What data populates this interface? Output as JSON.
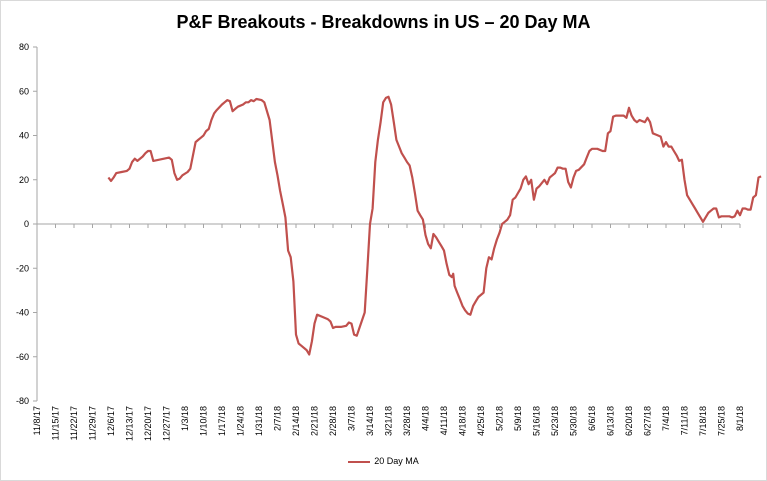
{
  "chart_data": {
    "type": "line",
    "title": "P&F Breakouts - Breakdowns in US – 20 Day MA",
    "xlabel": "",
    "ylabel": "",
    "ylim": [
      -80,
      80
    ],
    "yticks": [
      80,
      60,
      40,
      20,
      0,
      -20,
      -40,
      -60,
      -80
    ],
    "x_tick_labels": [
      "11/8/17",
      "11/15/17",
      "11/22/17",
      "11/29/17",
      "12/6/17",
      "12/13/17",
      "12/20/17",
      "12/27/17",
      "1/3/18",
      "1/10/18",
      "1/17/18",
      "1/24/18",
      "1/31/18",
      "2/7/18",
      "2/14/18",
      "2/21/18",
      "2/28/18",
      "3/7/18",
      "3/14/18",
      "3/21/18",
      "3/28/18",
      "4/4/18",
      "4/11/18",
      "4/18/18",
      "4/25/18",
      "5/2/18",
      "5/9/18",
      "5/16/18",
      "5/23/18",
      "5/30/18",
      "6/6/18",
      "6/13/18",
      "6/20/18",
      "6/27/18",
      "7/4/18",
      "7/11/18",
      "7/18/18",
      "7/25/18",
      "8/1/18"
    ],
    "x_range_days": [
      0,
      266
    ],
    "x_unit": "days since 11/8/17",
    "legend_position": "bottom",
    "grid": false,
    "series": [
      {
        "name": "20 Day MA",
        "color": "#c0504d",
        "points": [
          [
            27,
            21
          ],
          [
            28,
            19.5
          ],
          [
            29,
            21
          ],
          [
            30,
            23
          ],
          [
            32,
            23.5
          ],
          [
            34,
            24
          ],
          [
            35,
            25
          ],
          [
            36,
            28
          ],
          [
            37,
            29.5
          ],
          [
            38,
            28.5
          ],
          [
            40,
            30.5
          ],
          [
            41,
            32
          ],
          [
            42,
            33
          ],
          [
            43,
            33
          ],
          [
            44,
            28.5
          ],
          [
            46,
            29
          ],
          [
            48,
            29.5
          ],
          [
            50,
            30
          ],
          [
            51,
            29
          ],
          [
            52,
            23
          ],
          [
            53,
            20
          ],
          [
            54,
            20.5
          ],
          [
            55,
            22
          ],
          [
            57,
            23.5
          ],
          [
            58,
            25
          ],
          [
            60,
            37
          ],
          [
            61,
            38
          ],
          [
            62,
            39
          ],
          [
            63,
            40
          ],
          [
            64,
            42
          ],
          [
            65,
            43
          ],
          [
            66,
            47
          ],
          [
            67,
            50
          ],
          [
            68,
            51.5
          ],
          [
            70,
            54
          ],
          [
            71,
            55
          ],
          [
            72,
            56
          ],
          [
            73,
            55.5
          ],
          [
            74,
            51
          ],
          [
            75,
            52
          ],
          [
            76,
            53
          ],
          [
            78,
            54
          ],
          [
            79,
            55
          ],
          [
            80,
            55
          ],
          [
            81,
            56
          ],
          [
            82,
            55.5
          ],
          [
            83,
            56.5
          ],
          [
            85,
            56
          ],
          [
            86,
            55
          ],
          [
            88,
            47
          ],
          [
            90,
            28
          ],
          [
            91,
            22
          ],
          [
            92,
            15
          ],
          [
            93,
            9
          ],
          [
            94,
            3
          ],
          [
            95,
            -12
          ],
          [
            96,
            -15
          ],
          [
            97,
            -26
          ],
          [
            98,
            -50
          ],
          [
            99,
            -54
          ],
          [
            100,
            -55
          ],
          [
            102,
            -57
          ],
          [
            103,
            -59
          ],
          [
            104,
            -53
          ],
          [
            105,
            -45
          ],
          [
            106,
            -41
          ],
          [
            108,
            -42
          ],
          [
            110,
            -43
          ],
          [
            111,
            -44
          ],
          [
            112,
            -47
          ],
          [
            113,
            -46.5
          ],
          [
            115,
            -46.5
          ],
          [
            117,
            -46
          ],
          [
            118,
            -44.5
          ],
          [
            119,
            -45
          ],
          [
            120,
            -50
          ],
          [
            121,
            -50.5
          ],
          [
            122,
            -47
          ],
          [
            124,
            -40
          ],
          [
            125,
            -20
          ],
          [
            126,
            0
          ],
          [
            127,
            7
          ],
          [
            128,
            28
          ],
          [
            129,
            38
          ],
          [
            130,
            46
          ],
          [
            131,
            55
          ],
          [
            132,
            57
          ],
          [
            133,
            57.5
          ],
          [
            134,
            54
          ],
          [
            135,
            46
          ],
          [
            136,
            38
          ],
          [
            137,
            35
          ],
          [
            138,
            32
          ],
          [
            139,
            30
          ],
          [
            140,
            28
          ],
          [
            141,
            26.5
          ],
          [
            142,
            21
          ],
          [
            143,
            14
          ],
          [
            144,
            6
          ],
          [
            145,
            4
          ],
          [
            146,
            2
          ],
          [
            147,
            -5
          ],
          [
            148,
            -9
          ],
          [
            149,
            -11
          ],
          [
            150,
            -4.5
          ],
          [
            151,
            -6
          ],
          [
            152,
            -8
          ],
          [
            153,
            -10
          ],
          [
            154,
            -12
          ],
          [
            155,
            -18
          ],
          [
            156,
            -23
          ],
          [
            157,
            -24
          ],
          [
            157.5,
            -22.5
          ],
          [
            158,
            -28
          ],
          [
            159,
            -31
          ],
          [
            160,
            -34
          ],
          [
            161,
            -37
          ],
          [
            162,
            -39
          ],
          [
            163,
            -40.5
          ],
          [
            164,
            -41
          ],
          [
            165,
            -37
          ],
          [
            166,
            -35
          ],
          [
            167,
            -33
          ],
          [
            169,
            -31
          ],
          [
            170,
            -20
          ],
          [
            171,
            -15
          ],
          [
            172,
            -16
          ],
          [
            173,
            -11
          ],
          [
            174,
            -7
          ],
          [
            175,
            -4
          ],
          [
            176,
            0
          ],
          [
            177,
            1
          ],
          [
            178,
            2
          ],
          [
            179,
            4
          ],
          [
            180,
            11
          ],
          [
            181,
            12
          ],
          [
            182,
            14
          ],
          [
            183,
            16
          ],
          [
            184,
            20
          ],
          [
            185,
            21.5
          ],
          [
            186,
            18
          ],
          [
            187,
            20
          ],
          [
            188,
            11
          ],
          [
            189,
            16
          ],
          [
            190,
            17
          ],
          [
            192,
            20
          ],
          [
            193,
            18
          ],
          [
            194,
            21
          ],
          [
            195,
            22
          ],
          [
            196,
            23
          ],
          [
            197,
            25.5
          ],
          [
            198,
            25.5
          ],
          [
            199,
            25
          ],
          [
            200,
            25
          ],
          [
            201,
            19
          ],
          [
            202,
            16.5
          ],
          [
            203,
            21
          ],
          [
            204,
            24
          ],
          [
            205,
            24.5
          ],
          [
            207,
            27
          ],
          [
            208,
            30
          ],
          [
            209,
            33
          ],
          [
            210,
            34
          ],
          [
            211,
            34
          ],
          [
            212,
            34
          ],
          [
            214,
            33
          ],
          [
            215,
            33
          ],
          [
            216,
            41
          ],
          [
            217,
            42
          ],
          [
            218,
            48.5
          ],
          [
            219,
            49
          ],
          [
            220,
            49
          ],
          [
            222,
            49
          ],
          [
            223,
            48
          ],
          [
            224,
            52.5
          ],
          [
            225,
            49
          ],
          [
            226,
            47
          ],
          [
            227,
            46
          ],
          [
            228,
            47
          ],
          [
            229,
            46.5
          ],
          [
            230,
            46
          ],
          [
            231,
            48
          ],
          [
            232,
            46
          ],
          [
            233,
            41
          ],
          [
            234,
            40.5
          ],
          [
            235,
            40
          ],
          [
            236,
            39.5
          ],
          [
            237,
            35
          ],
          [
            238,
            37
          ],
          [
            239,
            35
          ],
          [
            240,
            35
          ],
          [
            241,
            33
          ],
          [
            242,
            31
          ],
          [
            243,
            28.5
          ],
          [
            244,
            29
          ],
          [
            245,
            20
          ],
          [
            246,
            13
          ],
          [
            247,
            11
          ],
          [
            248,
            9
          ],
          [
            249,
            7
          ],
          [
            250,
            5
          ],
          [
            251,
            3
          ],
          [
            252,
            1
          ],
          [
            253,
            3
          ],
          [
            254,
            5
          ],
          [
            255,
            6
          ],
          [
            256,
            7
          ],
          [
            257,
            7
          ],
          [
            258,
            3
          ],
          [
            259,
            3.5
          ],
          [
            260,
            3.5
          ],
          [
            261,
            3.5
          ],
          [
            262,
            3.5
          ],
          [
            263,
            3
          ],
          [
            264,
            3.5
          ],
          [
            265,
            6
          ],
          [
            266,
            4
          ],
          [
            267,
            7
          ],
          [
            268,
            7
          ],
          [
            269,
            6.5
          ],
          [
            270,
            6.5
          ],
          [
            271,
            12
          ],
          [
            272,
            13
          ],
          [
            273,
            21
          ],
          [
            274,
            21.5
          ]
        ]
      }
    ]
  }
}
